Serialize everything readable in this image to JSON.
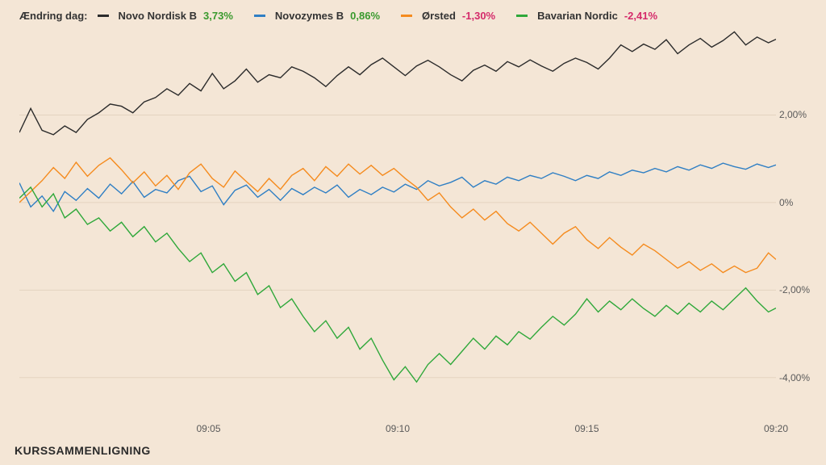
{
  "legend": {
    "title": "Ændring dag:",
    "items": [
      {
        "name": "Novo Nordisk B",
        "pct": "3,73%",
        "pctColor": "#3a9a2e",
        "color": "#2b2b2b"
      },
      {
        "name": "Novozymes B",
        "pct": "0,86%",
        "pctColor": "#3a9a2e",
        "color": "#2f7fc4"
      },
      {
        "name": "Ørsted",
        "pct": "-1,30%",
        "pctColor": "#d42a6a",
        "color": "#f58b1e"
      },
      {
        "name": "Bavarian Nordic",
        "pct": "-2,41%",
        "pctColor": "#d42a6a",
        "color": "#2fa83a"
      }
    ]
  },
  "footer": "KURSSAMMENLIGNING",
  "chart": {
    "type": "line",
    "background_color": "#f4e6d6",
    "grid_color": "#e3d3c0",
    "x": {
      "min": 0,
      "max": 20,
      "ticks": [
        5,
        10,
        15,
        20
      ],
      "tickLabels": [
        "09:05",
        "09:10",
        "09:15",
        "09:20"
      ]
    },
    "y": {
      "min": -5,
      "max": 4,
      "ticks": [
        2,
        0,
        -2,
        -4
      ],
      "tickLabels": [
        "2,00%",
        "0%",
        "-2,00%",
        "-4,00%"
      ]
    },
    "line_width": 1.4,
    "series": [
      {
        "name": "Novo Nordisk B",
        "color": "#2b2b2b",
        "x": [
          0,
          0.3,
          0.6,
          0.9,
          1.2,
          1.5,
          1.8,
          2.1,
          2.4,
          2.7,
          3,
          3.3,
          3.6,
          3.9,
          4.2,
          4.5,
          4.8,
          5.1,
          5.4,
          5.7,
          6,
          6.3,
          6.6,
          6.9,
          7.2,
          7.5,
          7.8,
          8.1,
          8.4,
          8.7,
          9,
          9.3,
          9.6,
          9.9,
          10.2,
          10.5,
          10.8,
          11.1,
          11.4,
          11.7,
          12,
          12.3,
          12.6,
          12.9,
          13.2,
          13.5,
          13.8,
          14.1,
          14.4,
          14.7,
          15,
          15.3,
          15.6,
          15.9,
          16.2,
          16.5,
          16.8,
          17.1,
          17.4,
          17.7,
          18,
          18.3,
          18.6,
          18.9,
          19.2,
          19.5,
          19.8,
          20
        ],
        "y": [
          1.6,
          2.15,
          1.65,
          1.55,
          1.75,
          1.6,
          1.9,
          2.05,
          2.25,
          2.2,
          2.05,
          2.3,
          2.4,
          2.6,
          2.45,
          2.72,
          2.55,
          2.95,
          2.6,
          2.78,
          3.05,
          2.75,
          2.92,
          2.85,
          3.1,
          3.0,
          2.85,
          2.65,
          2.9,
          3.1,
          2.92,
          3.15,
          3.3,
          3.1,
          2.9,
          3.12,
          3.25,
          3.1,
          2.92,
          2.78,
          3.02,
          3.14,
          3.0,
          3.22,
          3.1,
          3.26,
          3.12,
          3.0,
          3.18,
          3.3,
          3.2,
          3.05,
          3.3,
          3.6,
          3.45,
          3.62,
          3.5,
          3.72,
          3.4,
          3.6,
          3.75,
          3.55,
          3.7,
          3.9,
          3.6,
          3.78,
          3.65,
          3.73
        ]
      },
      {
        "name": "Novozymes B",
        "color": "#2f7fc4",
        "x": [
          0,
          0.3,
          0.6,
          0.9,
          1.2,
          1.5,
          1.8,
          2.1,
          2.4,
          2.7,
          3,
          3.3,
          3.6,
          3.9,
          4.2,
          4.5,
          4.8,
          5.1,
          5.4,
          5.7,
          6,
          6.3,
          6.6,
          6.9,
          7.2,
          7.5,
          7.8,
          8.1,
          8.4,
          8.7,
          9,
          9.3,
          9.6,
          9.9,
          10.2,
          10.5,
          10.8,
          11.1,
          11.4,
          11.7,
          12,
          12.3,
          12.6,
          12.9,
          13.2,
          13.5,
          13.8,
          14.1,
          14.4,
          14.7,
          15,
          15.3,
          15.6,
          15.9,
          16.2,
          16.5,
          16.8,
          17.1,
          17.4,
          17.7,
          18,
          18.3,
          18.6,
          18.9,
          19.2,
          19.5,
          19.8,
          20
        ],
        "y": [
          0.45,
          -0.1,
          0.15,
          -0.2,
          0.25,
          0.05,
          0.32,
          0.1,
          0.42,
          0.2,
          0.48,
          0.12,
          0.3,
          0.22,
          0.5,
          0.6,
          0.25,
          0.38,
          -0.05,
          0.28,
          0.4,
          0.12,
          0.3,
          0.05,
          0.32,
          0.18,
          0.35,
          0.22,
          0.4,
          0.12,
          0.3,
          0.18,
          0.35,
          0.24,
          0.42,
          0.3,
          0.5,
          0.38,
          0.46,
          0.58,
          0.35,
          0.5,
          0.42,
          0.58,
          0.5,
          0.62,
          0.55,
          0.68,
          0.6,
          0.5,
          0.62,
          0.55,
          0.7,
          0.62,
          0.74,
          0.68,
          0.78,
          0.7,
          0.82,
          0.74,
          0.86,
          0.78,
          0.9,
          0.82,
          0.76,
          0.88,
          0.8,
          0.86
        ]
      },
      {
        "name": "Ørsted",
        "color": "#f58b1e",
        "x": [
          0,
          0.3,
          0.6,
          0.9,
          1.2,
          1.5,
          1.8,
          2.1,
          2.4,
          2.7,
          3,
          3.3,
          3.6,
          3.9,
          4.2,
          4.5,
          4.8,
          5.1,
          5.4,
          5.7,
          6,
          6.3,
          6.6,
          6.9,
          7.2,
          7.5,
          7.8,
          8.1,
          8.4,
          8.7,
          9,
          9.3,
          9.6,
          9.9,
          10.2,
          10.5,
          10.8,
          11.1,
          11.4,
          11.7,
          12,
          12.3,
          12.6,
          12.9,
          13.2,
          13.5,
          13.8,
          14.1,
          14.4,
          14.7,
          15,
          15.3,
          15.6,
          15.9,
          16.2,
          16.5,
          16.8,
          17.1,
          17.4,
          17.7,
          18,
          18.3,
          18.6,
          18.9,
          19.2,
          19.5,
          19.8,
          20
        ],
        "y": [
          0.0,
          0.25,
          0.5,
          0.8,
          0.55,
          0.92,
          0.6,
          0.85,
          1.02,
          0.75,
          0.45,
          0.7,
          0.38,
          0.62,
          0.3,
          0.68,
          0.88,
          0.55,
          0.35,
          0.72,
          0.48,
          0.25,
          0.55,
          0.3,
          0.62,
          0.78,
          0.5,
          0.82,
          0.6,
          0.88,
          0.65,
          0.85,
          0.62,
          0.78,
          0.55,
          0.35,
          0.05,
          0.22,
          -0.1,
          -0.35,
          -0.15,
          -0.4,
          -0.2,
          -0.48,
          -0.65,
          -0.45,
          -0.7,
          -0.95,
          -0.7,
          -0.55,
          -0.85,
          -1.05,
          -0.8,
          -1.02,
          -1.2,
          -0.95,
          -1.1,
          -1.3,
          -1.5,
          -1.35,
          -1.55,
          -1.4,
          -1.6,
          -1.45,
          -1.6,
          -1.5,
          -1.15,
          -1.3
        ]
      },
      {
        "name": "Bavarian Nordic",
        "color": "#2fa83a",
        "x": [
          0,
          0.3,
          0.6,
          0.9,
          1.2,
          1.5,
          1.8,
          2.1,
          2.4,
          2.7,
          3,
          3.3,
          3.6,
          3.9,
          4.2,
          4.5,
          4.8,
          5.1,
          5.4,
          5.7,
          6,
          6.3,
          6.6,
          6.9,
          7.2,
          7.5,
          7.8,
          8.1,
          8.4,
          8.7,
          9,
          9.3,
          9.6,
          9.9,
          10.2,
          10.5,
          10.8,
          11.1,
          11.4,
          11.7,
          12,
          12.3,
          12.6,
          12.9,
          13.2,
          13.5,
          13.8,
          14.1,
          14.4,
          14.7,
          15,
          15.3,
          15.6,
          15.9,
          16.2,
          16.5,
          16.8,
          17.1,
          17.4,
          17.7,
          18,
          18.3,
          18.6,
          18.9,
          19.2,
          19.5,
          19.8,
          20
        ],
        "y": [
          0.1,
          0.35,
          -0.1,
          0.2,
          -0.35,
          -0.15,
          -0.5,
          -0.35,
          -0.65,
          -0.45,
          -0.78,
          -0.55,
          -0.9,
          -0.7,
          -1.05,
          -1.35,
          -1.15,
          -1.6,
          -1.4,
          -1.8,
          -1.6,
          -2.1,
          -1.9,
          -2.4,
          -2.2,
          -2.6,
          -2.95,
          -2.7,
          -3.1,
          -2.85,
          -3.35,
          -3.1,
          -3.6,
          -4.05,
          -3.75,
          -4.1,
          -3.7,
          -3.45,
          -3.7,
          -3.4,
          -3.1,
          -3.35,
          -3.05,
          -3.25,
          -2.95,
          -3.12,
          -2.85,
          -2.6,
          -2.8,
          -2.55,
          -2.2,
          -2.5,
          -2.25,
          -2.45,
          -2.2,
          -2.42,
          -2.6,
          -2.35,
          -2.55,
          -2.3,
          -2.5,
          -2.25,
          -2.45,
          -2.2,
          -1.95,
          -2.25,
          -2.5,
          -2.41
        ]
      }
    ]
  }
}
